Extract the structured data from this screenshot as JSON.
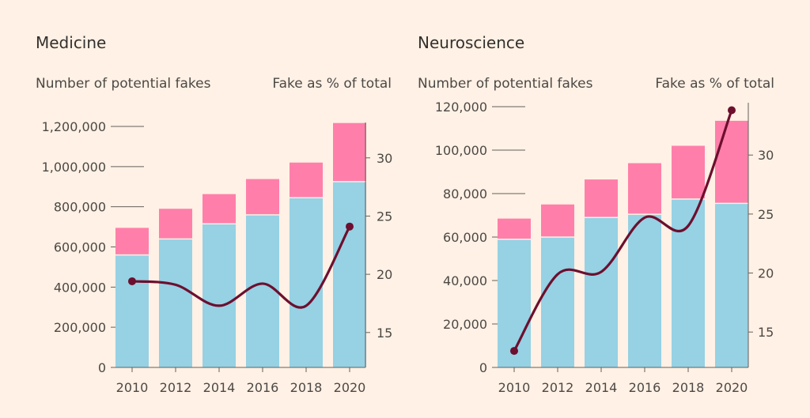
{
  "chart_data": [
    {
      "type": "bar+line",
      "title": "Medicine",
      "left_axis_label": "Number of potential fakes",
      "right_axis_label": "Fake as % of total",
      "categories": [
        "2010",
        "2012",
        "2014",
        "2016",
        "2018",
        "2020"
      ],
      "series": [
        {
          "name": "Potential fakes (lower segment)",
          "kind": "stacked-bar",
          "color": "#96D1E4",
          "values": [
            560000,
            640000,
            715000,
            760000,
            845000,
            925000
          ]
        },
        {
          "name": "Potential fakes (upper segment)",
          "kind": "stacked-bar",
          "color": "#FF7FAA",
          "values": [
            135000,
            150000,
            148000,
            178000,
            175000,
            292000
          ]
        },
        {
          "name": "Fake as % of total",
          "kind": "line",
          "axis": "right",
          "color": "#6D0F2E",
          "values": [
            19.4,
            19.1,
            17.3,
            19.2,
            17.3,
            24.1
          ]
        }
      ],
      "left_ylim": [
        0,
        1200000
      ],
      "left_ticks": [
        0,
        200000,
        400000,
        600000,
        800000,
        1000000,
        1200000
      ],
      "left_tick_labels": [
        "0",
        "200,000",
        "400,000",
        "600,000",
        "800,000",
        "1,000,000",
        "1,200,000"
      ],
      "right_ylim": [
        12,
        32.7
      ],
      "right_ticks": [
        15,
        20,
        25,
        30
      ],
      "right_tick_labels": [
        "15",
        "20",
        "25",
        "30"
      ]
    },
    {
      "type": "bar+line",
      "title": "Neuroscience",
      "left_axis_label": "Number of potential fakes",
      "right_axis_label": "Fake as % of total",
      "categories": [
        "2010",
        "2012",
        "2014",
        "2016",
        "2018",
        "2020"
      ],
      "series": [
        {
          "name": "Potential fakes (lower segment)",
          "kind": "stacked-bar",
          "color": "#96D1E4",
          "values": [
            59000,
            60000,
            69000,
            70500,
            77500,
            75500
          ]
        },
        {
          "name": "Potential fakes (upper segment)",
          "kind": "stacked-bar",
          "color": "#FF7FAA",
          "values": [
            9500,
            15000,
            17500,
            23500,
            24500,
            38000
          ]
        },
        {
          "name": "Fake as % of total",
          "kind": "line",
          "axis": "right",
          "color": "#6D0F2E",
          "values": [
            13.4,
            19.9,
            20.1,
            24.7,
            24.0,
            33.8
          ]
        }
      ],
      "left_ylim": [
        0,
        120000
      ],
      "left_ticks": [
        0,
        20000,
        40000,
        60000,
        80000,
        100000,
        120000
      ],
      "left_tick_labels": [
        "0",
        "20,000",
        "40,000",
        "60,000",
        "80,000",
        "100,000",
        "120,000"
      ],
      "right_ylim": [
        12,
        34.1
      ],
      "right_ticks": [
        15,
        20,
        25,
        30
      ],
      "right_tick_labels": [
        "15",
        "20",
        "25",
        "30"
      ]
    }
  ]
}
